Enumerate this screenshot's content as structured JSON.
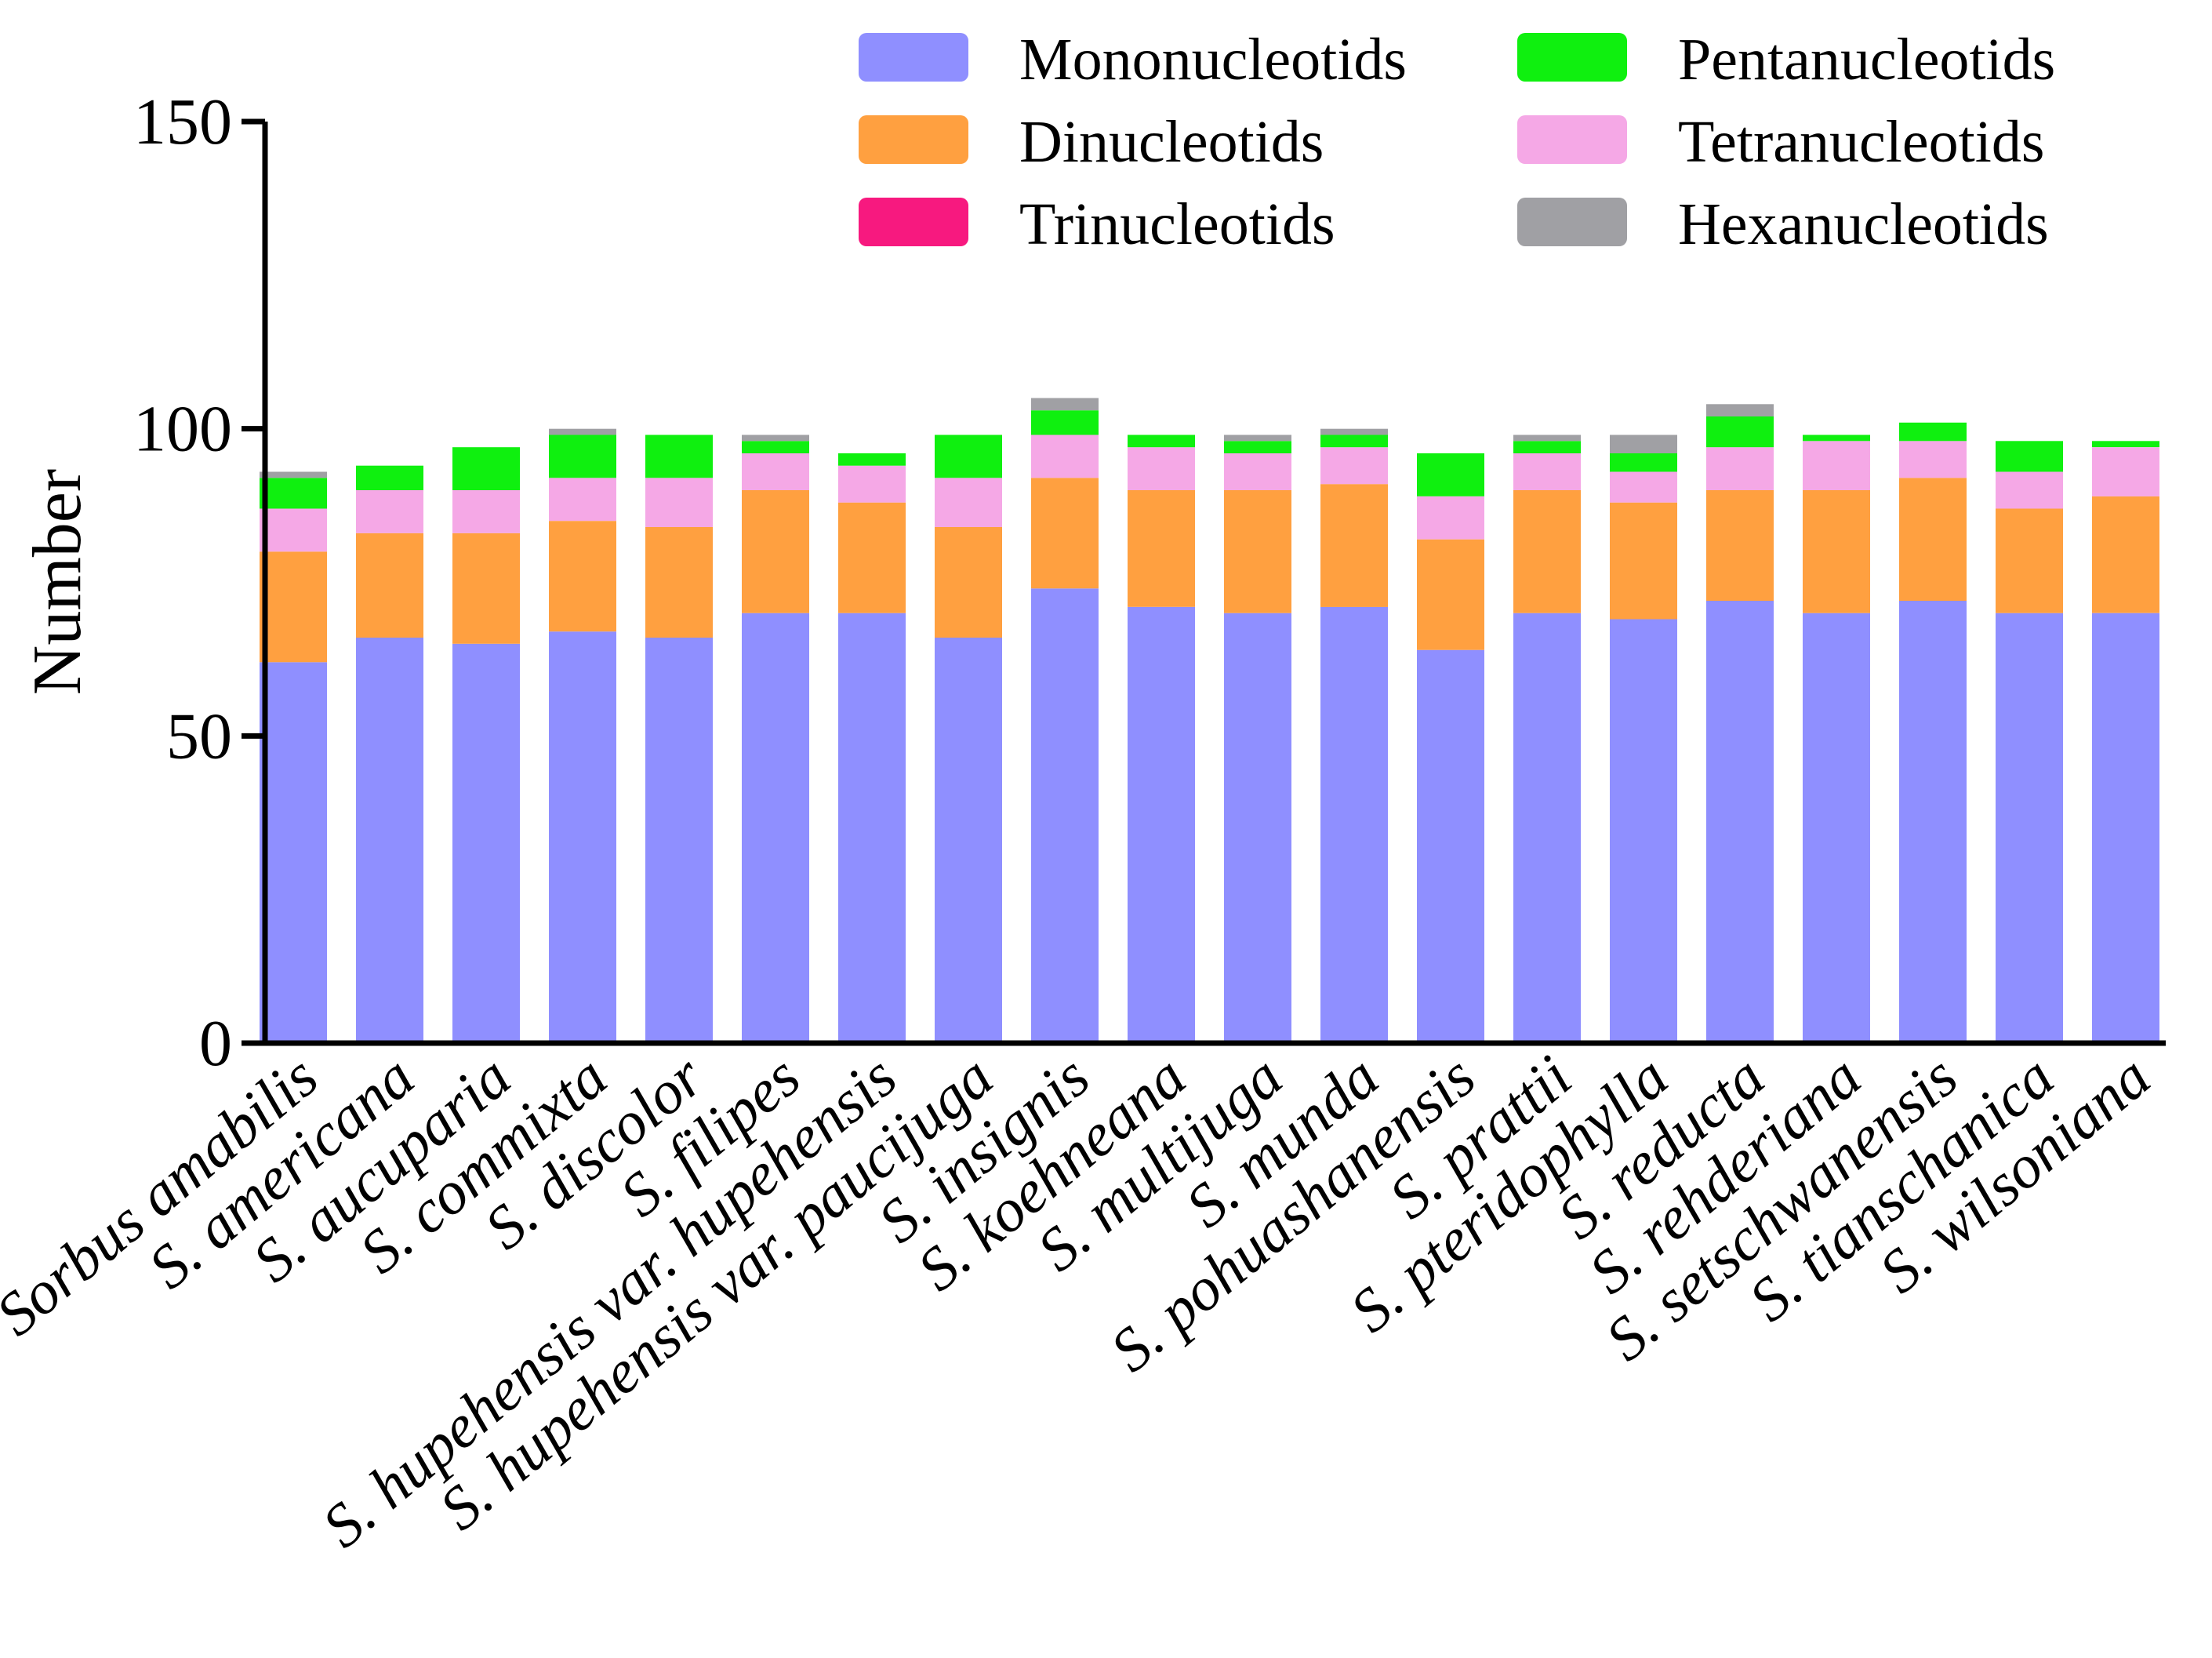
{
  "chart_data": {
    "type": "bar",
    "stacked": true,
    "title": "",
    "xlabel": "",
    "ylabel": "Number",
    "ylim": [
      0,
      150
    ],
    "yticks": [
      0,
      50,
      100,
      150
    ],
    "grid": false,
    "legend_position": "top-right",
    "categories": [
      "Sorbus amabilis",
      "S. americana",
      "S. aucuparia",
      "S. commixta",
      "S. discolor",
      "S. filipes",
      "S. hupehensis var. hupehensis",
      "S. hupehensis var. paucijuga",
      "S. insignis",
      "S. koehneana",
      "S. multijuga",
      "S. munda",
      "S. pohuashanensis",
      "S. prattii",
      "S. pteridophylla",
      "S. reducta",
      "S. rehderiana",
      "S. setschwanensis",
      "S. tianschanica",
      "S. wilsoniana"
    ],
    "series": [
      {
        "name": "Mononucleotids",
        "color": "#8F8FFF",
        "values": [
          62,
          66,
          65,
          67,
          66,
          70,
          70,
          66,
          74,
          71,
          70,
          71,
          64,
          70,
          69,
          72,
          70,
          72,
          70,
          70
        ]
      },
      {
        "name": "Dinucleotids",
        "color": "#FFA040",
        "values": [
          18,
          17,
          18,
          18,
          18,
          20,
          18,
          18,
          18,
          19,
          20,
          20,
          18,
          20,
          19,
          18,
          20,
          20,
          17,
          19
        ]
      },
      {
        "name": "Trinucleotids",
        "color": "#F7197F",
        "values": [
          0,
          0,
          0,
          0,
          0,
          0,
          0,
          0,
          0,
          0,
          0,
          0,
          0,
          0,
          0,
          0,
          0,
          0,
          0,
          0
        ]
      },
      {
        "name": "Tetranucleotids",
        "color": "#F5A8E6",
        "values": [
          7,
          7,
          7,
          7,
          8,
          6,
          6,
          8,
          7,
          7,
          6,
          6,
          7,
          6,
          5,
          7,
          8,
          6,
          6,
          8
        ]
      },
      {
        "name": "Pentanucleotids",
        "color": "#0FF00F",
        "values": [
          5,
          4,
          7,
          7,
          7,
          2,
          2,
          7,
          4,
          2,
          2,
          2,
          7,
          2,
          3,
          5,
          1,
          3,
          5,
          1
        ]
      },
      {
        "name": "Hexanucleotids",
        "color": "#A0A0A4",
        "values": [
          1,
          0,
          0,
          1,
          0,
          1,
          0,
          0,
          2,
          0,
          1,
          1,
          0,
          1,
          3,
          2,
          0,
          0,
          0,
          0
        ]
      }
    ],
    "legend_order": [
      "Mononucleotids",
      "Pentanucleotids",
      "Dinucleotids",
      "Tetranucleotids",
      "Trinucleotids",
      "Hexanucleotids"
    ]
  }
}
